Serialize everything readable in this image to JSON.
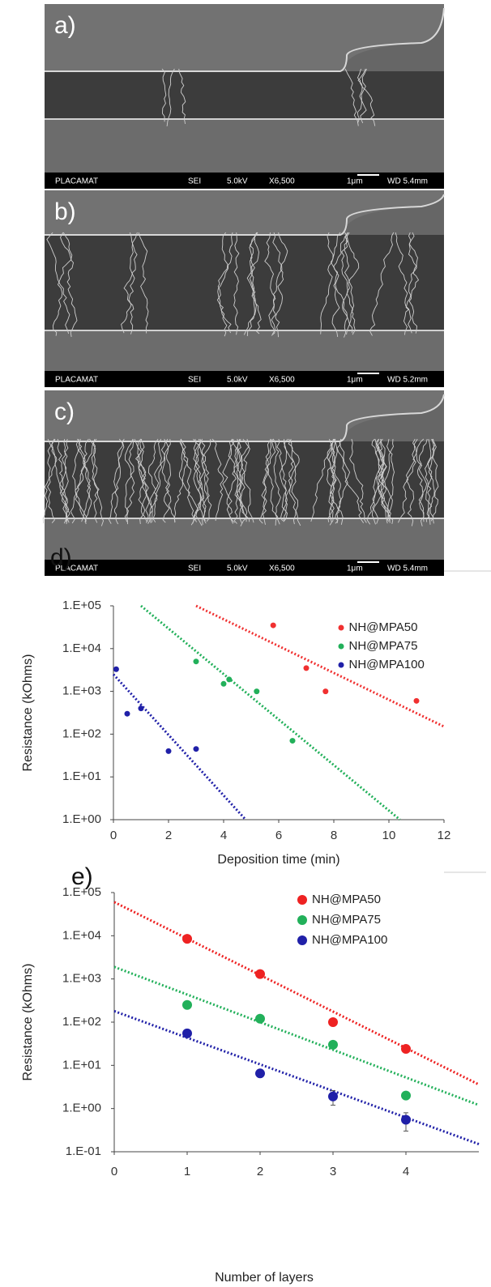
{
  "micrographs": [
    {
      "label": "a)",
      "bar": {
        "operator": "PLACAMAT",
        "mode": "SEI",
        "voltage": "5.0kV",
        "magnification": "X6,500",
        "scale": "1μm",
        "wd": "WD 5.4mm"
      }
    },
    {
      "label": "b)",
      "bar": {
        "operator": "PLACAMAT",
        "mode": "SEI",
        "voltage": "5.0kV",
        "magnification": "X6,500",
        "scale": "1μm",
        "wd": "WD 5.2mm"
      }
    },
    {
      "label": "c)",
      "bar": {
        "operator": "PLACAMAT",
        "mode": "SEI",
        "voltage": "5.0kV",
        "magnification": "X6,500",
        "scale": "1μm",
        "wd": "WD 5.4mm"
      }
    }
  ],
  "chart_data": [
    {
      "type": "scatter",
      "label": "d)",
      "xlabel": "Deposition time (min)",
      "ylabel": "Resistance (kOhms)",
      "log_y": true,
      "legend": "top-right",
      "xlim": [
        0,
        12
      ],
      "xticks": [
        0,
        2,
        4,
        6,
        8,
        10,
        12
      ],
      "ylim": [
        1,
        100000
      ],
      "yticks": [
        {
          "value": 1,
          "label": "1.E+00"
        },
        {
          "value": 10,
          "label": "1.E+01"
        },
        {
          "value": 100,
          "label": "1.E+02"
        },
        {
          "value": 1000,
          "label": "1.E+03"
        },
        {
          "value": 10000,
          "label": "1.E+04"
        },
        {
          "value": 100000,
          "label": "1.E+05"
        }
      ],
      "series": [
        {
          "name": "NH@MPA50",
          "color": "#f03030",
          "x": [
            5.8,
            7,
            7.7,
            11
          ],
          "values": [
            35000,
            3500,
            1000,
            600
          ],
          "fit": {
            "x": [
              3,
              12
            ],
            "values": [
              100000,
              150
            ]
          }
        },
        {
          "name": "NH@MPA75",
          "color": "#22b05a",
          "x": [
            3,
            4,
            4.2,
            5.2,
            6.5
          ],
          "values": [
            5000,
            1500,
            1900,
            1000,
            70
          ],
          "fit": {
            "x": [
              1,
              10.4
            ],
            "values": [
              100000,
              1
            ]
          }
        },
        {
          "name": "NH@MPA100",
          "color": "#2020a8",
          "x": [
            0.1,
            0.5,
            1,
            2,
            3
          ],
          "values": [
            3300,
            300,
            400,
            40,
            45
          ],
          "fit": {
            "x": [
              0,
              4.8
            ],
            "values": [
              2500,
              1
            ]
          }
        }
      ]
    },
    {
      "type": "scatter",
      "label": "e)",
      "xlabel": "Number of layers",
      "ylabel": "Resistance (kOhms)",
      "log_y": true,
      "legend": "top-right",
      "xlim": [
        0,
        5
      ],
      "xticks": [
        0,
        1,
        2,
        3,
        4
      ],
      "ylim": [
        0.1,
        100000
      ],
      "yticks": [
        {
          "value": 0.1,
          "label": "1.E-01"
        },
        {
          "value": 1,
          "label": "1.E+00"
        },
        {
          "value": 10,
          "label": "1.E+01"
        },
        {
          "value": 100,
          "label": "1.E+02"
        },
        {
          "value": 1000,
          "label": "1.E+03"
        },
        {
          "value": 10000,
          "label": "1.E+04"
        },
        {
          "value": 100000,
          "label": "1.E+05"
        }
      ],
      "series": [
        {
          "name": "NH@MPA50",
          "color": "#ee2222",
          "x": [
            1,
            2,
            3,
            4
          ],
          "values": [
            8500,
            1300,
            100,
            24
          ],
          "fit": {
            "x": [
              0,
              5
            ],
            "values": [
              60000,
              3.6
            ]
          }
        },
        {
          "name": "NH@MPA75",
          "color": "#22b05a",
          "x": [
            1,
            2,
            3,
            4
          ],
          "values": [
            250,
            120,
            30,
            2
          ],
          "fit": {
            "x": [
              0,
              5
            ],
            "values": [
              1900,
              1.2
            ]
          }
        },
        {
          "name": "NH@MPA100",
          "color": "#2020a8",
          "x": [
            1,
            2,
            3,
            4
          ],
          "values": [
            55,
            6.5,
            1.9,
            0.55
          ],
          "errors": [
            null,
            null,
            0.7,
            0.25
          ],
          "fit": {
            "x": [
              0,
              5
            ],
            "values": [
              180,
              0.15
            ]
          }
        }
      ]
    }
  ]
}
